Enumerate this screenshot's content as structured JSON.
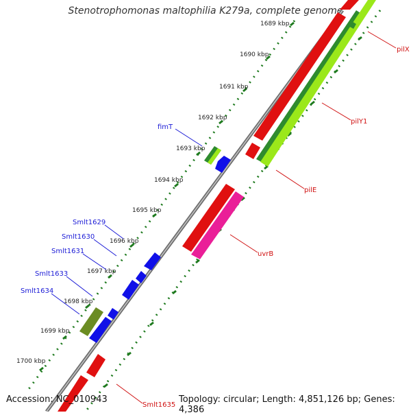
{
  "title": "Stenotrophomonas maltophilia K279a, complete genome",
  "footer": {
    "accession": "Accession: NC_010943",
    "topology": "Topology: circular; Length: 4,851,126 bp; Genes: 4,386"
  },
  "colors": {
    "backbone": "#8a8a8a",
    "tick": "#1e7a1e",
    "label_blue": "#1a1ad6",
    "label_red": "#d01010",
    "gene_red": "#e01010",
    "gene_blue": "#1010e8",
    "gene_green": "#2e8b2e",
    "gene_lightgreen": "#9be81a",
    "gene_magenta": "#ea1f98",
    "gene_olive": "#6b8c23"
  },
  "ticks": [
    "1689 kbp",
    "1690 kbp",
    "1691 kbp",
    "1692 kbp",
    "1693 kbp",
    "1694 kbp",
    "1695 kbp",
    "1696 kbp",
    "1697 kbp",
    "1698 kbp",
    "1699 kbp",
    "1700 kbp"
  ],
  "gene_labels": {
    "fimT": "fimT",
    "smlt1629": "Smlt1629",
    "smlt1630": "Smlt1630",
    "smlt1631": "Smlt1631",
    "smlt1633": "Smlt1633",
    "smlt1634": "Smlt1634",
    "pilX": "pilX",
    "pilY1": "pilY1",
    "pilE": "pilE",
    "uvrB": "uvrB",
    "smlt1635": "Smlt1635"
  }
}
